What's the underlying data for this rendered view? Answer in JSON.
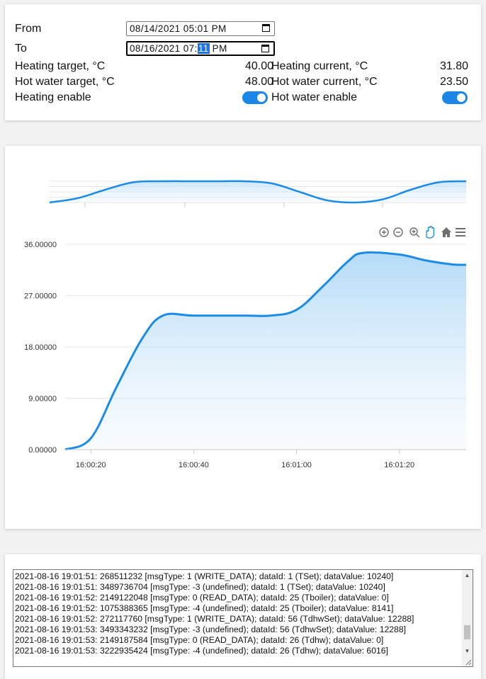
{
  "controls": {
    "from_label": "From",
    "from_value": "08/14/2021 05:01 PM",
    "to_label": "To",
    "to_value_before": "08/16/2021 07:",
    "to_value_selected": "11",
    "to_value_after": " PM",
    "heating_target_label": "Heating target, °C",
    "heating_target_value": "40.00",
    "heating_current_label": "Heating current, °C",
    "heating_current_value": "31.80",
    "hot_water_target_label": "Hot water target, °C",
    "hot_water_target_value": "48.00",
    "hot_water_current_label": "Hot water current, °C",
    "hot_water_current_value": "23.50",
    "heating_enable_label": "Heating enable",
    "heating_enable_on": true,
    "hot_water_enable_label": "Hot water enable",
    "hot_water_enable_on": true
  },
  "toolbar": {
    "icons": [
      "zoom-in-icon",
      "zoom-out-icon",
      "selection-zoom-icon",
      "pan-icon",
      "home-icon",
      "menu-icon"
    ]
  },
  "chart_data": {
    "type": "area",
    "x": [
      "16:00:15",
      "16:00:20",
      "16:00:25",
      "16:00:30",
      "16:00:34",
      "16:00:40",
      "16:00:50",
      "16:00:55",
      "16:01:00",
      "16:01:05",
      "16:01:10",
      "16:01:13",
      "16:01:20",
      "16:01:25",
      "16:01:30",
      "16:01:33"
    ],
    "series": [
      {
        "values": [
          0.0,
          2.0,
          11.0,
          19.5,
          23.5,
          23.5,
          23.5,
          23.5,
          24.5,
          28.5,
          33.0,
          34.5,
          34.2,
          33.2,
          32.5,
          32.4
        ]
      }
    ],
    "y_ticks": [
      "0.00000",
      "9.00000",
      "18.00000",
      "27.00000",
      "36.00000"
    ],
    "x_ticks": [
      "16:00:20",
      "16:00:40",
      "16:01:00",
      "16:01:20"
    ],
    "ylim": [
      0,
      36
    ],
    "grid": true,
    "color": "#1a8ce8",
    "navigator": true
  },
  "log": {
    "lines": [
      "2021-08-16 19:01:51: 268511232 [msgType: 1 (WRITE_DATA); dataId: 1 (TSet); dataValue: 10240]",
      "2021-08-16 19:01:51: 3489736704 [msgType: -3 (undefined); dataId: 1 (TSet); dataValue: 10240]",
      "2021-08-16 19:01:52: 2149122048 [msgType: 0 (READ_DATA); dataId: 25 (Tboiler); dataValue: 0]",
      "2021-08-16 19:01:52: 1075388365 [msgType: -4 (undefined); dataId: 25 (Tboiler); dataValue: 8141]",
      "2021-08-16 19:01:52: 272117760 [msgType: 1 (WRITE_DATA); dataId: 56 (TdhwSet); dataValue: 12288]",
      "2021-08-16 19:01:53: 3493343232 [msgType: -3 (undefined); dataId: 56 (TdhwSet); dataValue: 12288]",
      "2021-08-16 19:01:53: 2149187584 [msgType: 0 (READ_DATA); dataId: 26 (Tdhw); dataValue: 0]",
      "2021-08-16 19:01:53: 3222935424 [msgType: -4 (undefined); dataId: 26 (Tdhw); dataValue: 6016]"
    ]
  }
}
